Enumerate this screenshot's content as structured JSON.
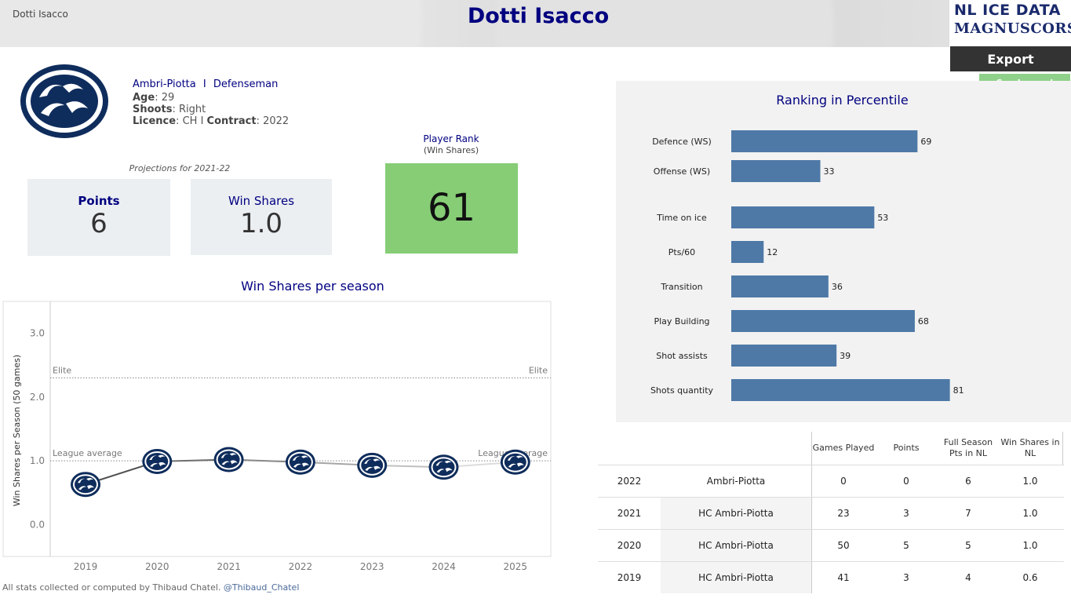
{
  "header": {
    "breadcrumb": "Dotti Isacco",
    "title": "Dotti Isacco",
    "logo_line1": "NL ICE DATA",
    "logo_line2": "MAGNUSCORSI"
  },
  "actions": {
    "export_label": "Export",
    "legend_label": "See Legend"
  },
  "player": {
    "team": "Ambri-Piotta",
    "separator": "I",
    "position": "Defenseman",
    "age_label": "Age",
    "age": "29",
    "shoots_label": "Shoots",
    "shoots": "Right",
    "licence_label": "Licence",
    "licence": "CH",
    "contract_label": "Contract",
    "contract": "2022"
  },
  "projections": {
    "label": "Projections for 2021-22",
    "points_label": "Points",
    "points": "6",
    "ws_label": "Win Shares",
    "ws": "1.0"
  },
  "rank": {
    "label": "Player Rank",
    "sub": "(Win Shares)",
    "value": "61",
    "color": "#86cd76"
  },
  "chart_data": [
    {
      "type": "line",
      "title": "Win Shares per season",
      "ylabel": "Win Shares per Season (50 games)",
      "x": [
        "2019",
        "2020",
        "2021",
        "2022",
        "2023",
        "2024",
        "2025"
      ],
      "values": [
        0.63,
        0.99,
        1.02,
        0.98,
        0.93,
        0.9,
        0.98
      ],
      "ylim": [
        -0.5,
        3.5
      ],
      "yticks": [
        "3.0",
        "2.0",
        "1.0",
        "0.0"
      ],
      "reference_lines": [
        {
          "label": "Elite",
          "value": 2.3
        },
        {
          "label": "League average",
          "value": 1.0
        }
      ],
      "marker": "team-logo"
    },
    {
      "type": "bar",
      "orientation": "horizontal",
      "title": "Ranking in Percentile",
      "categories": [
        "Defence (WS)",
        "Offense (WS)",
        "Time on ice",
        "Pts/60",
        "Transition",
        "Play Building",
        "Shot assists",
        "Shots quantity"
      ],
      "values": [
        69,
        33,
        53,
        12,
        36,
        68,
        39,
        81
      ],
      "xlim": [
        0,
        100
      ],
      "color": "#4e79a7"
    }
  ],
  "table": {
    "headers": [
      "Games Played",
      "Points",
      "Full Season Pts in NL",
      "Win Shares in NL"
    ],
    "rows": [
      {
        "season": "2022",
        "team": "Ambri-Piotta",
        "gp": "0",
        "pts": "0",
        "full_pts": "6",
        "ws": "1.0"
      },
      {
        "season": "2021",
        "team": "HC Ambri-Piotta",
        "gp": "23",
        "pts": "3",
        "full_pts": "7",
        "ws": "1.0"
      },
      {
        "season": "2020",
        "team": "HC Ambri-Piotta",
        "gp": "50",
        "pts": "5",
        "full_pts": "5",
        "ws": "1.0"
      },
      {
        "season": "2019",
        "team": "HC Ambri-Piotta",
        "gp": "41",
        "pts": "3",
        "full_pts": "4",
        "ws": "0.6"
      }
    ]
  },
  "footer": {
    "text": "All stats collected or computed by Thibaud Chatel.",
    "handle": "@Thibaud_Chatel"
  }
}
